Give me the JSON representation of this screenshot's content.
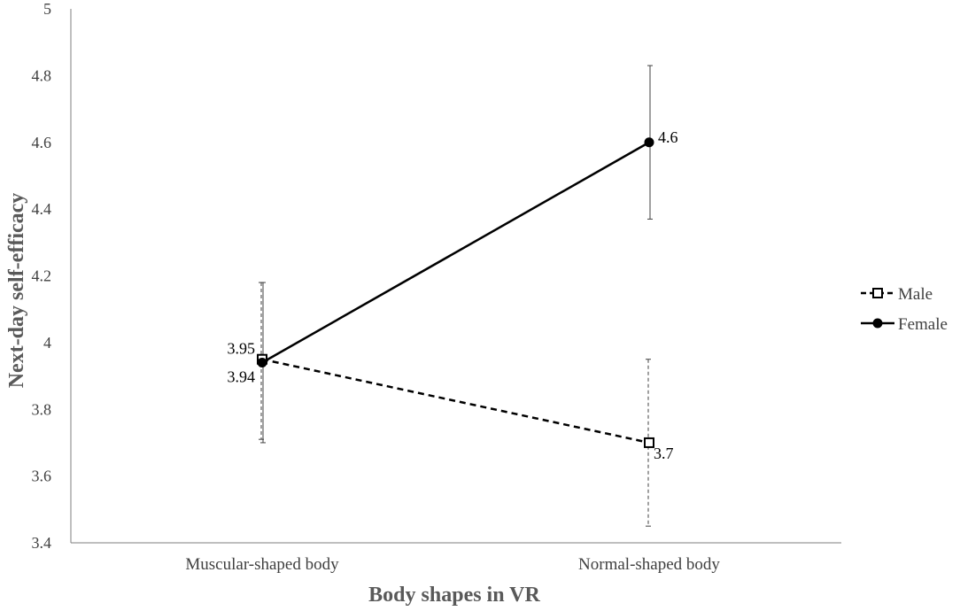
{
  "chart_data": {
    "type": "line",
    "title": "",
    "xlabel": "Body shapes in VR",
    "ylabel": "Next-day self-efficacy",
    "categories": [
      "Muscular-shaped body",
      "Normal-shaped body"
    ],
    "ylim": [
      3.4,
      5.0
    ],
    "yticks": [
      "3.4",
      "3.6",
      "3.8",
      "4",
      "4.2",
      "4.4",
      "4.6",
      "4.8",
      "5"
    ],
    "grid": false,
    "legend": "right",
    "series": [
      {
        "name": "Male",
        "values": [
          3.95,
          3.7
        ],
        "labels": [
          "3.95",
          "3.7"
        ],
        "error_low": [
          3.71,
          3.45
        ],
        "error_high": [
          4.18,
          3.95
        ],
        "line_style": "dashed",
        "marker": "open-square",
        "color": "#000000"
      },
      {
        "name": "Female",
        "values": [
          3.94,
          4.6
        ],
        "labels": [
          "3.94",
          "4.6"
        ],
        "error_low": [
          3.7,
          4.37
        ],
        "error_high": [
          4.18,
          4.83
        ],
        "line_style": "solid",
        "marker": "filled-circle",
        "color": "#000000"
      }
    ]
  }
}
